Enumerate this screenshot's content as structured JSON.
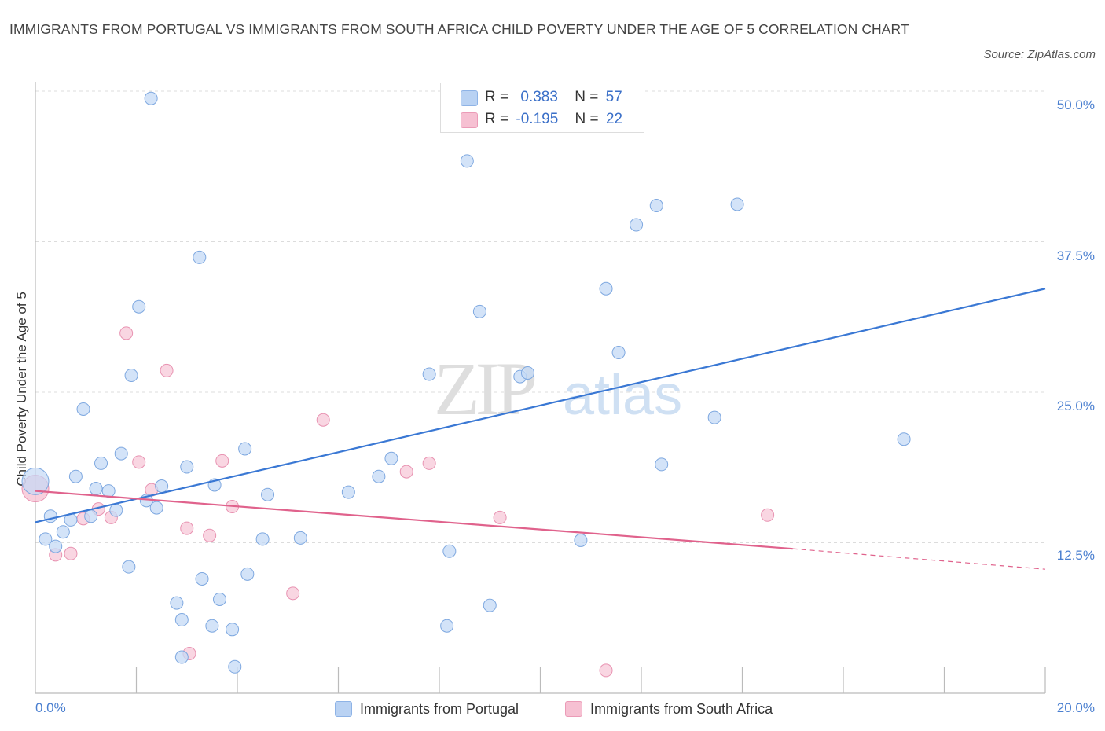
{
  "title": "IMMIGRANTS FROM PORTUGAL VS IMMIGRANTS FROM SOUTH AFRICA CHILD POVERTY UNDER THE AGE OF 5 CORRELATION CHART",
  "source": "Source: ZipAtlas.com",
  "watermark": {
    "zip": "ZIP",
    "atlas": "atlas"
  },
  "colors": {
    "blue": "#3a78d4",
    "blue_fill": "#b9d2f3",
    "pink": "#e0628c",
    "pink_fill": "#f6c0d2",
    "tick_text": "#4a7fd0"
  },
  "stats": [
    {
      "r_label": "R =",
      "r": "0.383",
      "n_label": "N =",
      "n": "57"
    },
    {
      "r_label": "R =",
      "r": "-0.195",
      "n_label": "N =",
      "n": "22"
    }
  ],
  "legend": {
    "a": "Immigrants from Portugal",
    "b": "Immigrants from South Africa"
  },
  "chart_data": {
    "type": "scatter",
    "title": "IMMIGRANTS FROM PORTUGAL VS IMMIGRANTS FROM SOUTH AFRICA CHILD POVERTY UNDER THE AGE OF 5 CORRELATION CHART",
    "xlabel": "",
    "ylabel": "Child Poverty Under the Age of 5",
    "xlim": [
      0,
      20
    ],
    "ylim": [
      0,
      50
    ],
    "x_ticks": [
      "0.0%",
      "20.0%"
    ],
    "y_ticks": [
      "12.5%",
      "25.0%",
      "37.5%",
      "50.0%"
    ],
    "grid": true,
    "legend_position": "bottom",
    "series": [
      {
        "name": "Immigrants from Portugal",
        "r": 0.383,
        "n": 57,
        "trend": [
          [
            0,
            14.2
          ],
          [
            20,
            33.6
          ]
        ],
        "points": [
          [
            0.0,
            17.6
          ],
          [
            0.2,
            12.8
          ],
          [
            0.3,
            14.7
          ],
          [
            0.4,
            12.2
          ],
          [
            0.55,
            13.4
          ],
          [
            0.7,
            14.4
          ],
          [
            0.8,
            18.0
          ],
          [
            0.95,
            23.6
          ],
          [
            1.1,
            14.7
          ],
          [
            1.2,
            17.0
          ],
          [
            1.3,
            19.1
          ],
          [
            1.45,
            16.8
          ],
          [
            1.6,
            15.2
          ],
          [
            1.7,
            19.9
          ],
          [
            1.85,
            10.5
          ],
          [
            1.9,
            26.4
          ],
          [
            2.05,
            32.1
          ],
          [
            2.2,
            16.0
          ],
          [
            2.29,
            49.4
          ],
          [
            2.4,
            15.4
          ],
          [
            2.5,
            17.2
          ],
          [
            2.8,
            7.5
          ],
          [
            2.9,
            6.1
          ],
          [
            3.0,
            18.8
          ],
          [
            3.25,
            36.2
          ],
          [
            3.3,
            9.5
          ],
          [
            3.5,
            5.6
          ],
          [
            3.55,
            17.3
          ],
          [
            3.65,
            7.8
          ],
          [
            3.9,
            5.3
          ],
          [
            3.95,
            2.2
          ],
          [
            4.15,
            20.3
          ],
          [
            4.2,
            9.9
          ],
          [
            4.5,
            12.8
          ],
          [
            4.6,
            16.5
          ],
          [
            5.25,
            12.9
          ],
          [
            6.2,
            16.7
          ],
          [
            6.8,
            18.0
          ],
          [
            7.05,
            19.5
          ],
          [
            7.8,
            26.5
          ],
          [
            8.15,
            5.6
          ],
          [
            8.2,
            11.8
          ],
          [
            8.55,
            44.2
          ],
          [
            8.8,
            31.7
          ],
          [
            9.0,
            7.3
          ],
          [
            9.6,
            26.3
          ],
          [
            9.75,
            26.6
          ],
          [
            10.8,
            12.7
          ],
          [
            11.3,
            33.6
          ],
          [
            11.55,
            28.3
          ],
          [
            11.9,
            38.9
          ],
          [
            12.3,
            40.5
          ],
          [
            12.4,
            19.0
          ],
          [
            13.45,
            22.9
          ],
          [
            13.9,
            40.6
          ],
          [
            17.2,
            21.1
          ],
          [
            2.9,
            3.0
          ]
        ]
      },
      {
        "name": "Immigrants from South Africa",
        "r": -0.195,
        "n": 22,
        "trend_solid": [
          [
            0,
            16.8
          ],
          [
            15,
            12.0
          ]
        ],
        "trend_dashed": [
          [
            15,
            12.0
          ],
          [
            20,
            10.3
          ]
        ],
        "points": [
          [
            0.0,
            17.0
          ],
          [
            0.4,
            11.5
          ],
          [
            0.7,
            11.6
          ],
          [
            0.95,
            14.5
          ],
          [
            1.25,
            15.3
          ],
          [
            1.5,
            14.6
          ],
          [
            1.8,
            29.9
          ],
          [
            2.05,
            19.2
          ],
          [
            2.3,
            16.9
          ],
          [
            2.6,
            26.8
          ],
          [
            3.0,
            13.7
          ],
          [
            3.05,
            3.3
          ],
          [
            3.45,
            13.1
          ],
          [
            3.7,
            19.3
          ],
          [
            3.9,
            15.5
          ],
          [
            5.1,
            8.3
          ],
          [
            5.7,
            22.7
          ],
          [
            7.35,
            18.4
          ],
          [
            7.8,
            19.1
          ],
          [
            9.2,
            14.6
          ],
          [
            11.3,
            1.9
          ],
          [
            14.5,
            14.8
          ]
        ]
      }
    ]
  }
}
